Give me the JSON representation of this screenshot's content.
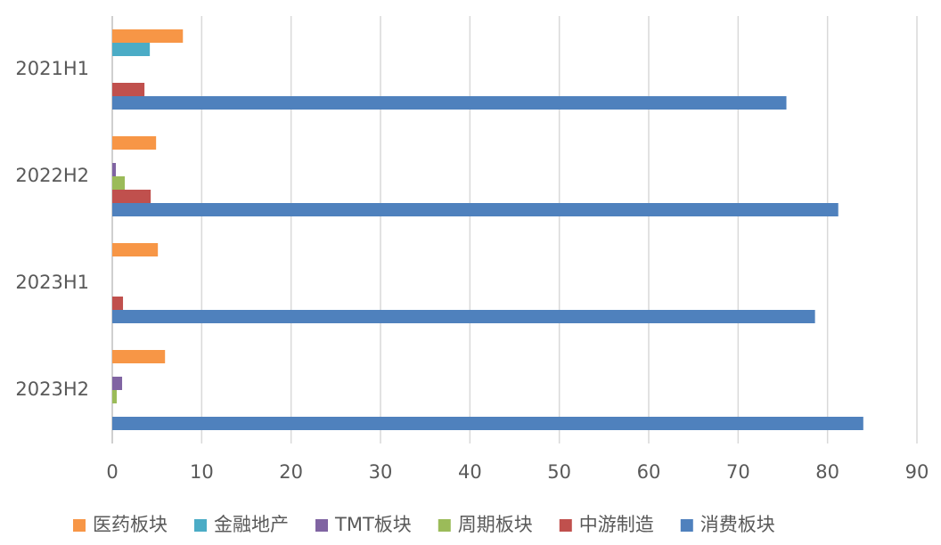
{
  "chart_data": {
    "type": "bar",
    "orientation": "horizontal",
    "categories": [
      "2021H1",
      "2022H2",
      "2023H1",
      "2023H2"
    ],
    "series": [
      {
        "name": "医药板块",
        "color": "#f79646",
        "values": [
          7.9,
          4.9,
          5.1,
          5.9
        ]
      },
      {
        "name": "金融地产",
        "color": "#4bacc6",
        "values": [
          4.2,
          0,
          0,
          0
        ]
      },
      {
        "name": "TMT板块",
        "color": "#8064a2",
        "values": [
          0,
          0.4,
          0,
          1.1
        ]
      },
      {
        "name": "周期板块",
        "color": "#9bbb59",
        "values": [
          0,
          1.4,
          0,
          0.5
        ]
      },
      {
        "name": "中游制造",
        "color": "#c0504d",
        "values": [
          3.6,
          4.3,
          1.2,
          0
        ]
      },
      {
        "name": "消费板块",
        "color": "#4f81bd",
        "values": [
          75.4,
          81.2,
          78.6,
          84.0
        ]
      }
    ],
    "xlim": [
      0,
      90
    ],
    "xticks": [
      0,
      10,
      20,
      30,
      40,
      50,
      60,
      70,
      80,
      90
    ],
    "grid": true,
    "legend": "bottom"
  }
}
